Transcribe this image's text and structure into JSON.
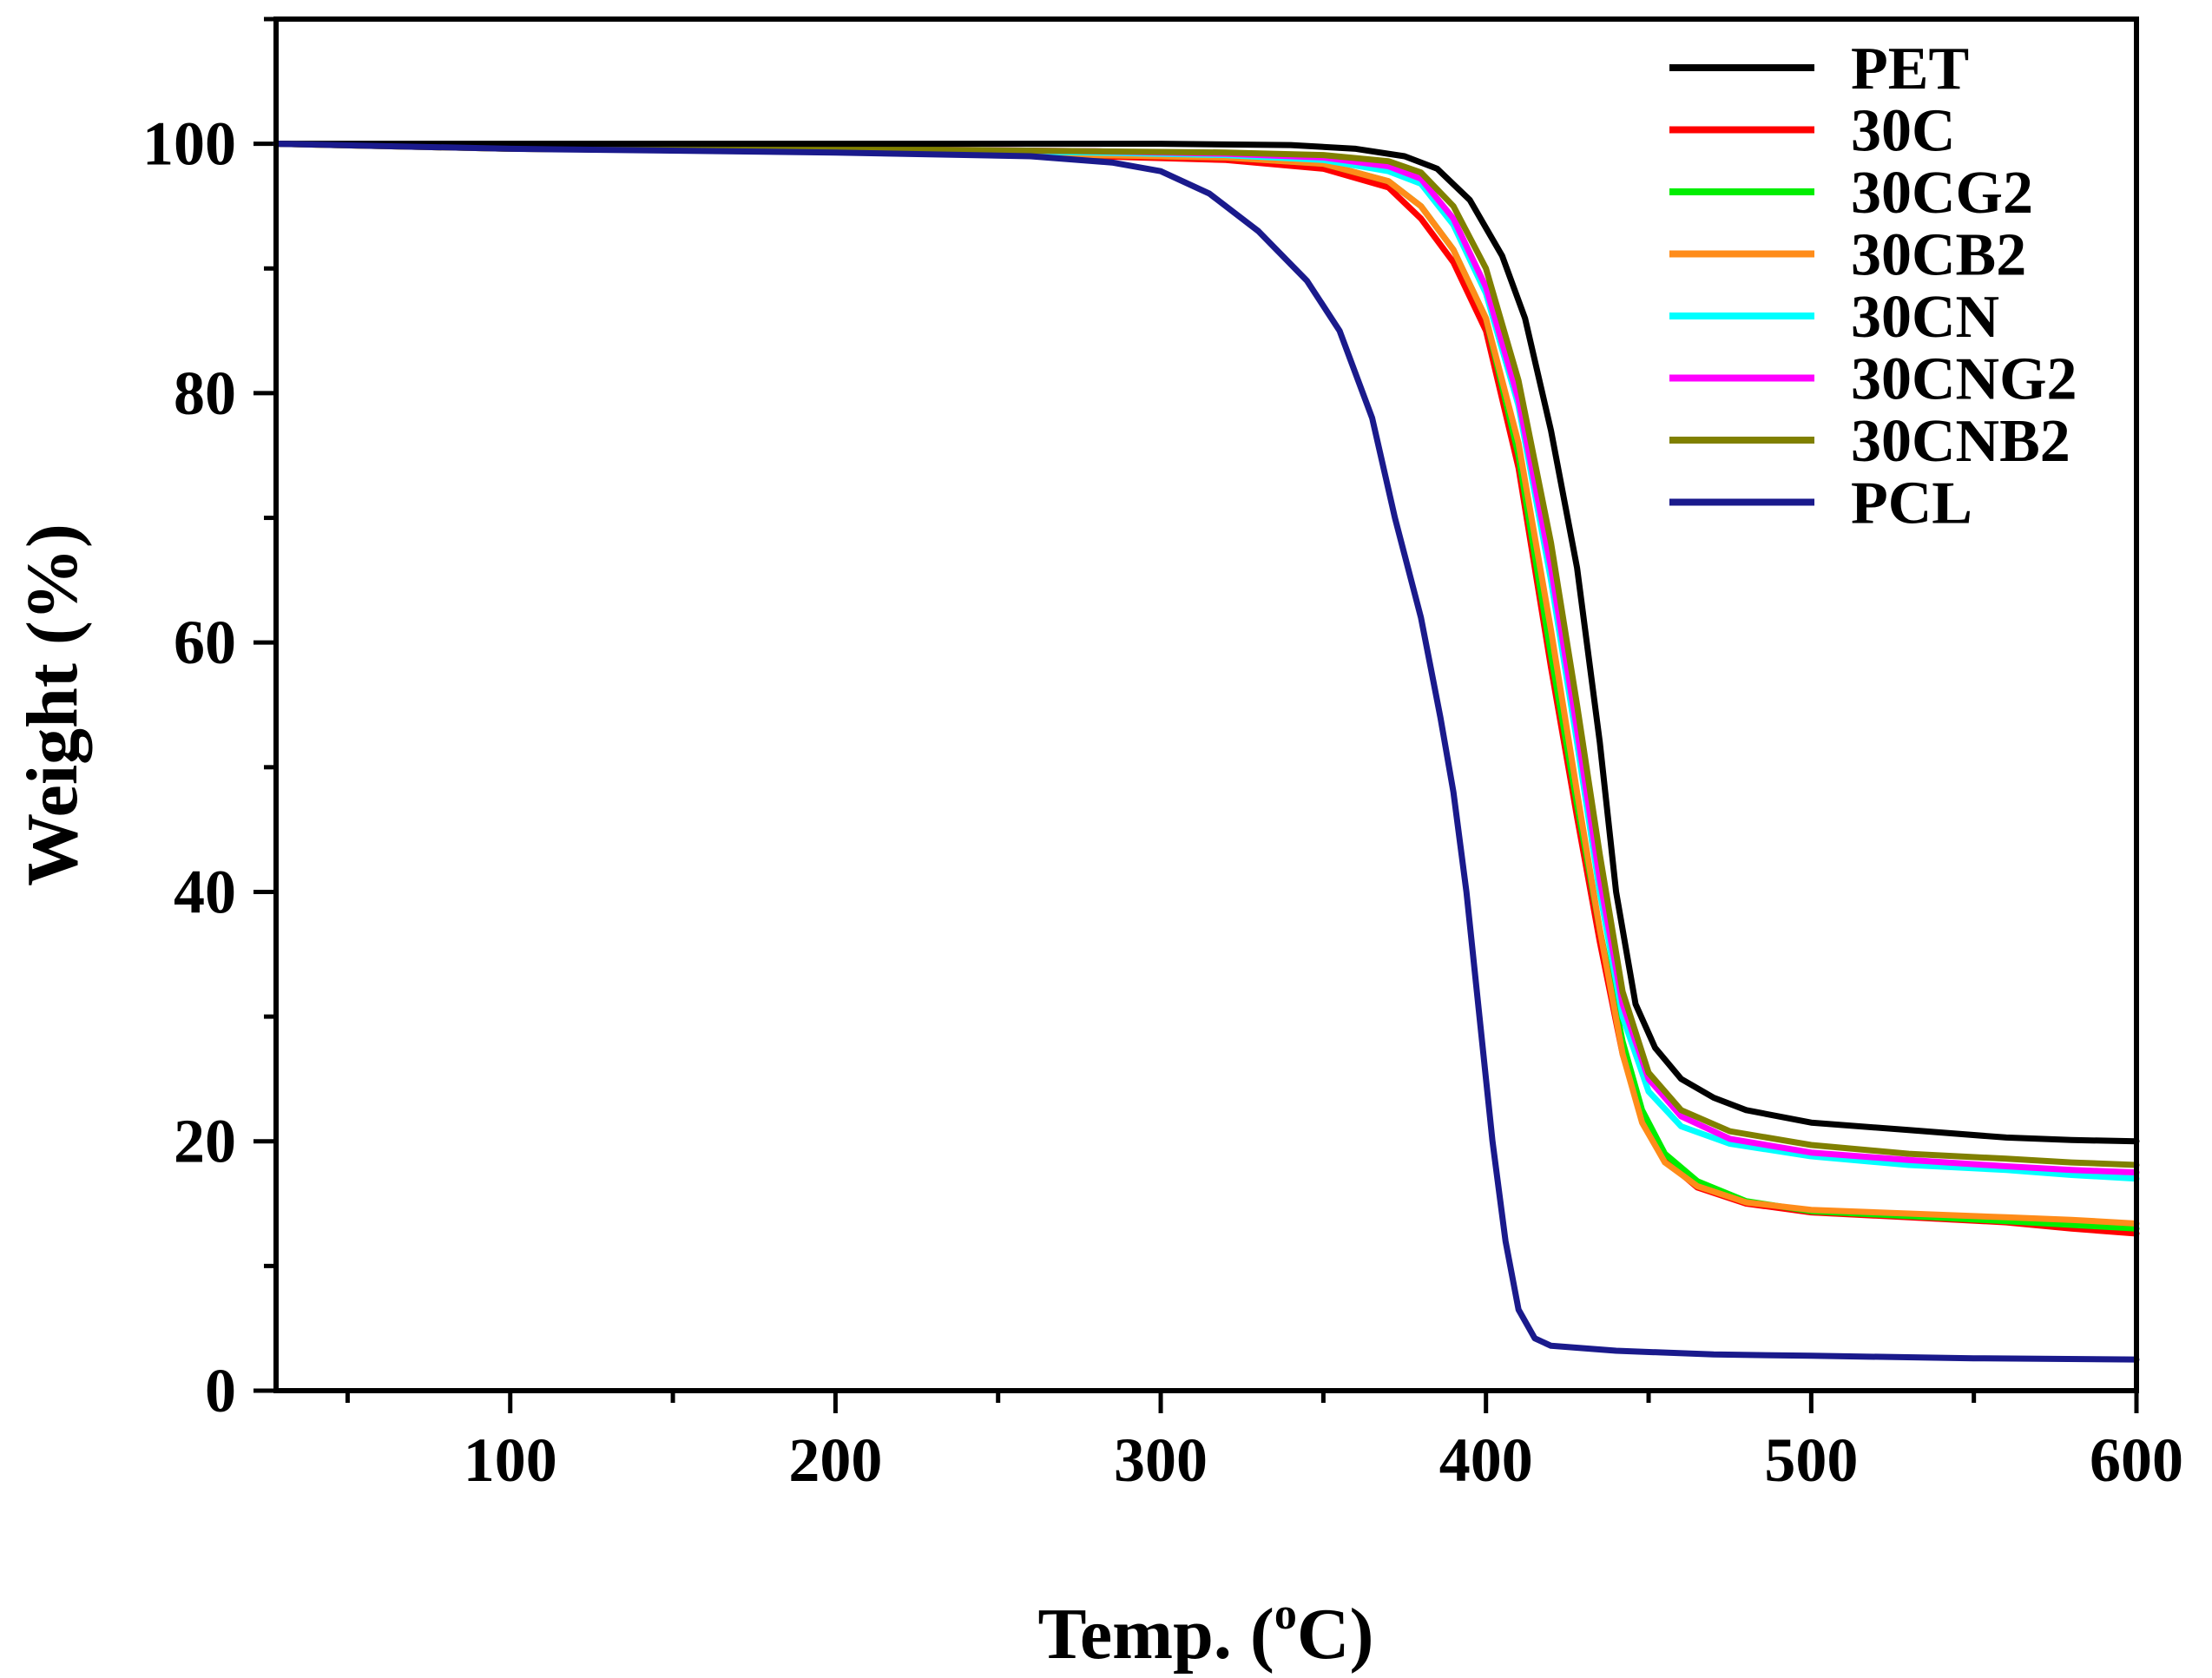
{
  "chart_data": {
    "type": "line",
    "title": "",
    "xlabel": "Temp. (",
    "xlabel_sup": "o",
    "xlabel_suffix": "C)",
    "ylabel": "Weight (%)",
    "xlim": [
      28,
      600
    ],
    "ylim": [
      0,
      110
    ],
    "x_ticks": [
      100,
      200,
      300,
      400,
      500,
      600
    ],
    "x_tick_labels": [
      "100",
      "200",
      "300",
      "400",
      "500",
      "600"
    ],
    "y_ticks": [
      0,
      20,
      40,
      60,
      80,
      100
    ],
    "y_tick_labels": [
      "0",
      "20",
      "40",
      "60",
      "80",
      "100"
    ],
    "grid": false,
    "legend_position": "top-right",
    "series": [
      {
        "name": "PET",
        "color": "#000000",
        "points": [
          [
            28,
            100
          ],
          [
            100,
            100
          ],
          [
            200,
            100
          ],
          [
            300,
            100
          ],
          [
            340,
            99.9
          ],
          [
            360,
            99.6
          ],
          [
            375,
            99
          ],
          [
            385,
            98
          ],
          [
            395,
            95.5
          ],
          [
            405,
            91
          ],
          [
            412,
            86
          ],
          [
            420,
            77
          ],
          [
            428,
            66
          ],
          [
            435,
            52
          ],
          [
            440,
            40
          ],
          [
            446,
            31
          ],
          [
            452,
            27.5
          ],
          [
            460,
            25
          ],
          [
            470,
            23.5
          ],
          [
            480,
            22.5
          ],
          [
            500,
            21.5
          ],
          [
            530,
            20.9
          ],
          [
            560,
            20.3
          ],
          [
            580,
            20.1
          ],
          [
            600,
            20
          ]
        ]
      },
      {
        "name": "30C",
        "color": "#ff0000",
        "points": [
          [
            28,
            100
          ],
          [
            100,
            99.6
          ],
          [
            200,
            99.4
          ],
          [
            280,
            99
          ],
          [
            320,
            98.7
          ],
          [
            350,
            98
          ],
          [
            370,
            96.5
          ],
          [
            380,
            94
          ],
          [
            390,
            90.5
          ],
          [
            400,
            85
          ],
          [
            410,
            74
          ],
          [
            420,
            58
          ],
          [
            428,
            46
          ],
          [
            435,
            36
          ],
          [
            442,
            27
          ],
          [
            448,
            22
          ],
          [
            455,
            18.5
          ],
          [
            465,
            16.3
          ],
          [
            480,
            15
          ],
          [
            500,
            14.3
          ],
          [
            530,
            13.9
          ],
          [
            560,
            13.5
          ],
          [
            580,
            13
          ],
          [
            600,
            12.6
          ]
        ]
      },
      {
        "name": "30CG2",
        "color": "#00ee00",
        "points": [
          [
            28,
            100
          ],
          [
            100,
            99.6
          ],
          [
            200,
            99.4
          ],
          [
            280,
            99.1
          ],
          [
            320,
            98.9
          ],
          [
            350,
            98.4
          ],
          [
            370,
            97
          ],
          [
            380,
            95
          ],
          [
            390,
            91.5
          ],
          [
            400,
            86
          ],
          [
            410,
            75
          ],
          [
            420,
            59
          ],
          [
            428,
            47
          ],
          [
            435,
            37
          ],
          [
            442,
            28
          ],
          [
            448,
            22.5
          ],
          [
            455,
            19
          ],
          [
            465,
            16.8
          ],
          [
            480,
            15.2
          ],
          [
            500,
            14.4
          ],
          [
            530,
            14
          ],
          [
            560,
            13.6
          ],
          [
            580,
            13.3
          ],
          [
            600,
            13
          ]
        ]
      },
      {
        "name": "30CB2",
        "color": "#ff8c1a",
        "points": [
          [
            28,
            100
          ],
          [
            100,
            99.6
          ],
          [
            200,
            99.4
          ],
          [
            280,
            99.1
          ],
          [
            320,
            98.9
          ],
          [
            350,
            98.4
          ],
          [
            370,
            97
          ],
          [
            380,
            95
          ],
          [
            390,
            91.5
          ],
          [
            400,
            86
          ],
          [
            410,
            76
          ],
          [
            420,
            61
          ],
          [
            428,
            48
          ],
          [
            435,
            37
          ],
          [
            442,
            27
          ],
          [
            448,
            21.5
          ],
          [
            455,
            18.3
          ],
          [
            465,
            16.4
          ],
          [
            480,
            15.1
          ],
          [
            500,
            14.5
          ],
          [
            530,
            14.2
          ],
          [
            560,
            13.9
          ],
          [
            580,
            13.7
          ],
          [
            600,
            13.4
          ]
        ]
      },
      {
        "name": "30CN",
        "color": "#00ffff",
        "points": [
          [
            28,
            100
          ],
          [
            100,
            99.7
          ],
          [
            200,
            99.5
          ],
          [
            280,
            99.3
          ],
          [
            320,
            99.1
          ],
          [
            350,
            98.7
          ],
          [
            370,
            97.8
          ],
          [
            380,
            96.8
          ],
          [
            390,
            93.5
          ],
          [
            400,
            88
          ],
          [
            410,
            79
          ],
          [
            420,
            65
          ],
          [
            428,
            52
          ],
          [
            435,
            40
          ],
          [
            442,
            30
          ],
          [
            450,
            24
          ],
          [
            460,
            21.2
          ],
          [
            475,
            19.8
          ],
          [
            500,
            18.8
          ],
          [
            530,
            18.1
          ],
          [
            560,
            17.7
          ],
          [
            580,
            17.3
          ],
          [
            600,
            17
          ]
        ]
      },
      {
        "name": "30CNG2",
        "color": "#ff00ff",
        "points": [
          [
            28,
            100
          ],
          [
            100,
            99.7
          ],
          [
            200,
            99.6
          ],
          [
            280,
            99.4
          ],
          [
            320,
            99.2
          ],
          [
            350,
            98.9
          ],
          [
            370,
            98.2
          ],
          [
            380,
            97.2
          ],
          [
            390,
            94
          ],
          [
            400,
            88.5
          ],
          [
            410,
            79.5
          ],
          [
            420,
            66
          ],
          [
            428,
            53
          ],
          [
            435,
            41
          ],
          [
            442,
            31
          ],
          [
            450,
            25
          ],
          [
            460,
            22
          ],
          [
            475,
            20.2
          ],
          [
            500,
            19.1
          ],
          [
            530,
            18.5
          ],
          [
            560,
            18
          ],
          [
            580,
            17.7
          ],
          [
            600,
            17.5
          ]
        ]
      },
      {
        "name": "30CNB2",
        "color": "#808000",
        "points": [
          [
            28,
            100
          ],
          [
            100,
            99.7
          ],
          [
            200,
            99.6
          ],
          [
            280,
            99.4
          ],
          [
            320,
            99.3
          ],
          [
            350,
            99.1
          ],
          [
            370,
            98.6
          ],
          [
            380,
            97.7
          ],
          [
            390,
            95
          ],
          [
            400,
            90
          ],
          [
            410,
            81
          ],
          [
            420,
            68
          ],
          [
            428,
            55
          ],
          [
            435,
            43
          ],
          [
            442,
            32
          ],
          [
            450,
            25.5
          ],
          [
            460,
            22.5
          ],
          [
            475,
            20.8
          ],
          [
            500,
            19.7
          ],
          [
            530,
            19
          ],
          [
            560,
            18.6
          ],
          [
            580,
            18.3
          ],
          [
            600,
            18.1
          ]
        ]
      },
      {
        "name": "PCL",
        "color": "#1a1a8c",
        "points": [
          [
            28,
            100
          ],
          [
            100,
            99.6
          ],
          [
            200,
            99.3
          ],
          [
            260,
            99
          ],
          [
            285,
            98.5
          ],
          [
            300,
            97.8
          ],
          [
            315,
            96
          ],
          [
            330,
            93
          ],
          [
            345,
            89
          ],
          [
            355,
            85
          ],
          [
            365,
            78
          ],
          [
            372,
            70
          ],
          [
            380,
            62
          ],
          [
            386,
            54
          ],
          [
            390,
            48
          ],
          [
            394,
            40
          ],
          [
            398,
            30
          ],
          [
            402,
            20
          ],
          [
            406,
            12
          ],
          [
            410,
            6.5
          ],
          [
            415,
            4.2
          ],
          [
            420,
            3.6
          ],
          [
            440,
            3.2
          ],
          [
            470,
            2.9
          ],
          [
            500,
            2.8
          ],
          [
            550,
            2.6
          ],
          [
            600,
            2.5
          ]
        ]
      }
    ]
  }
}
